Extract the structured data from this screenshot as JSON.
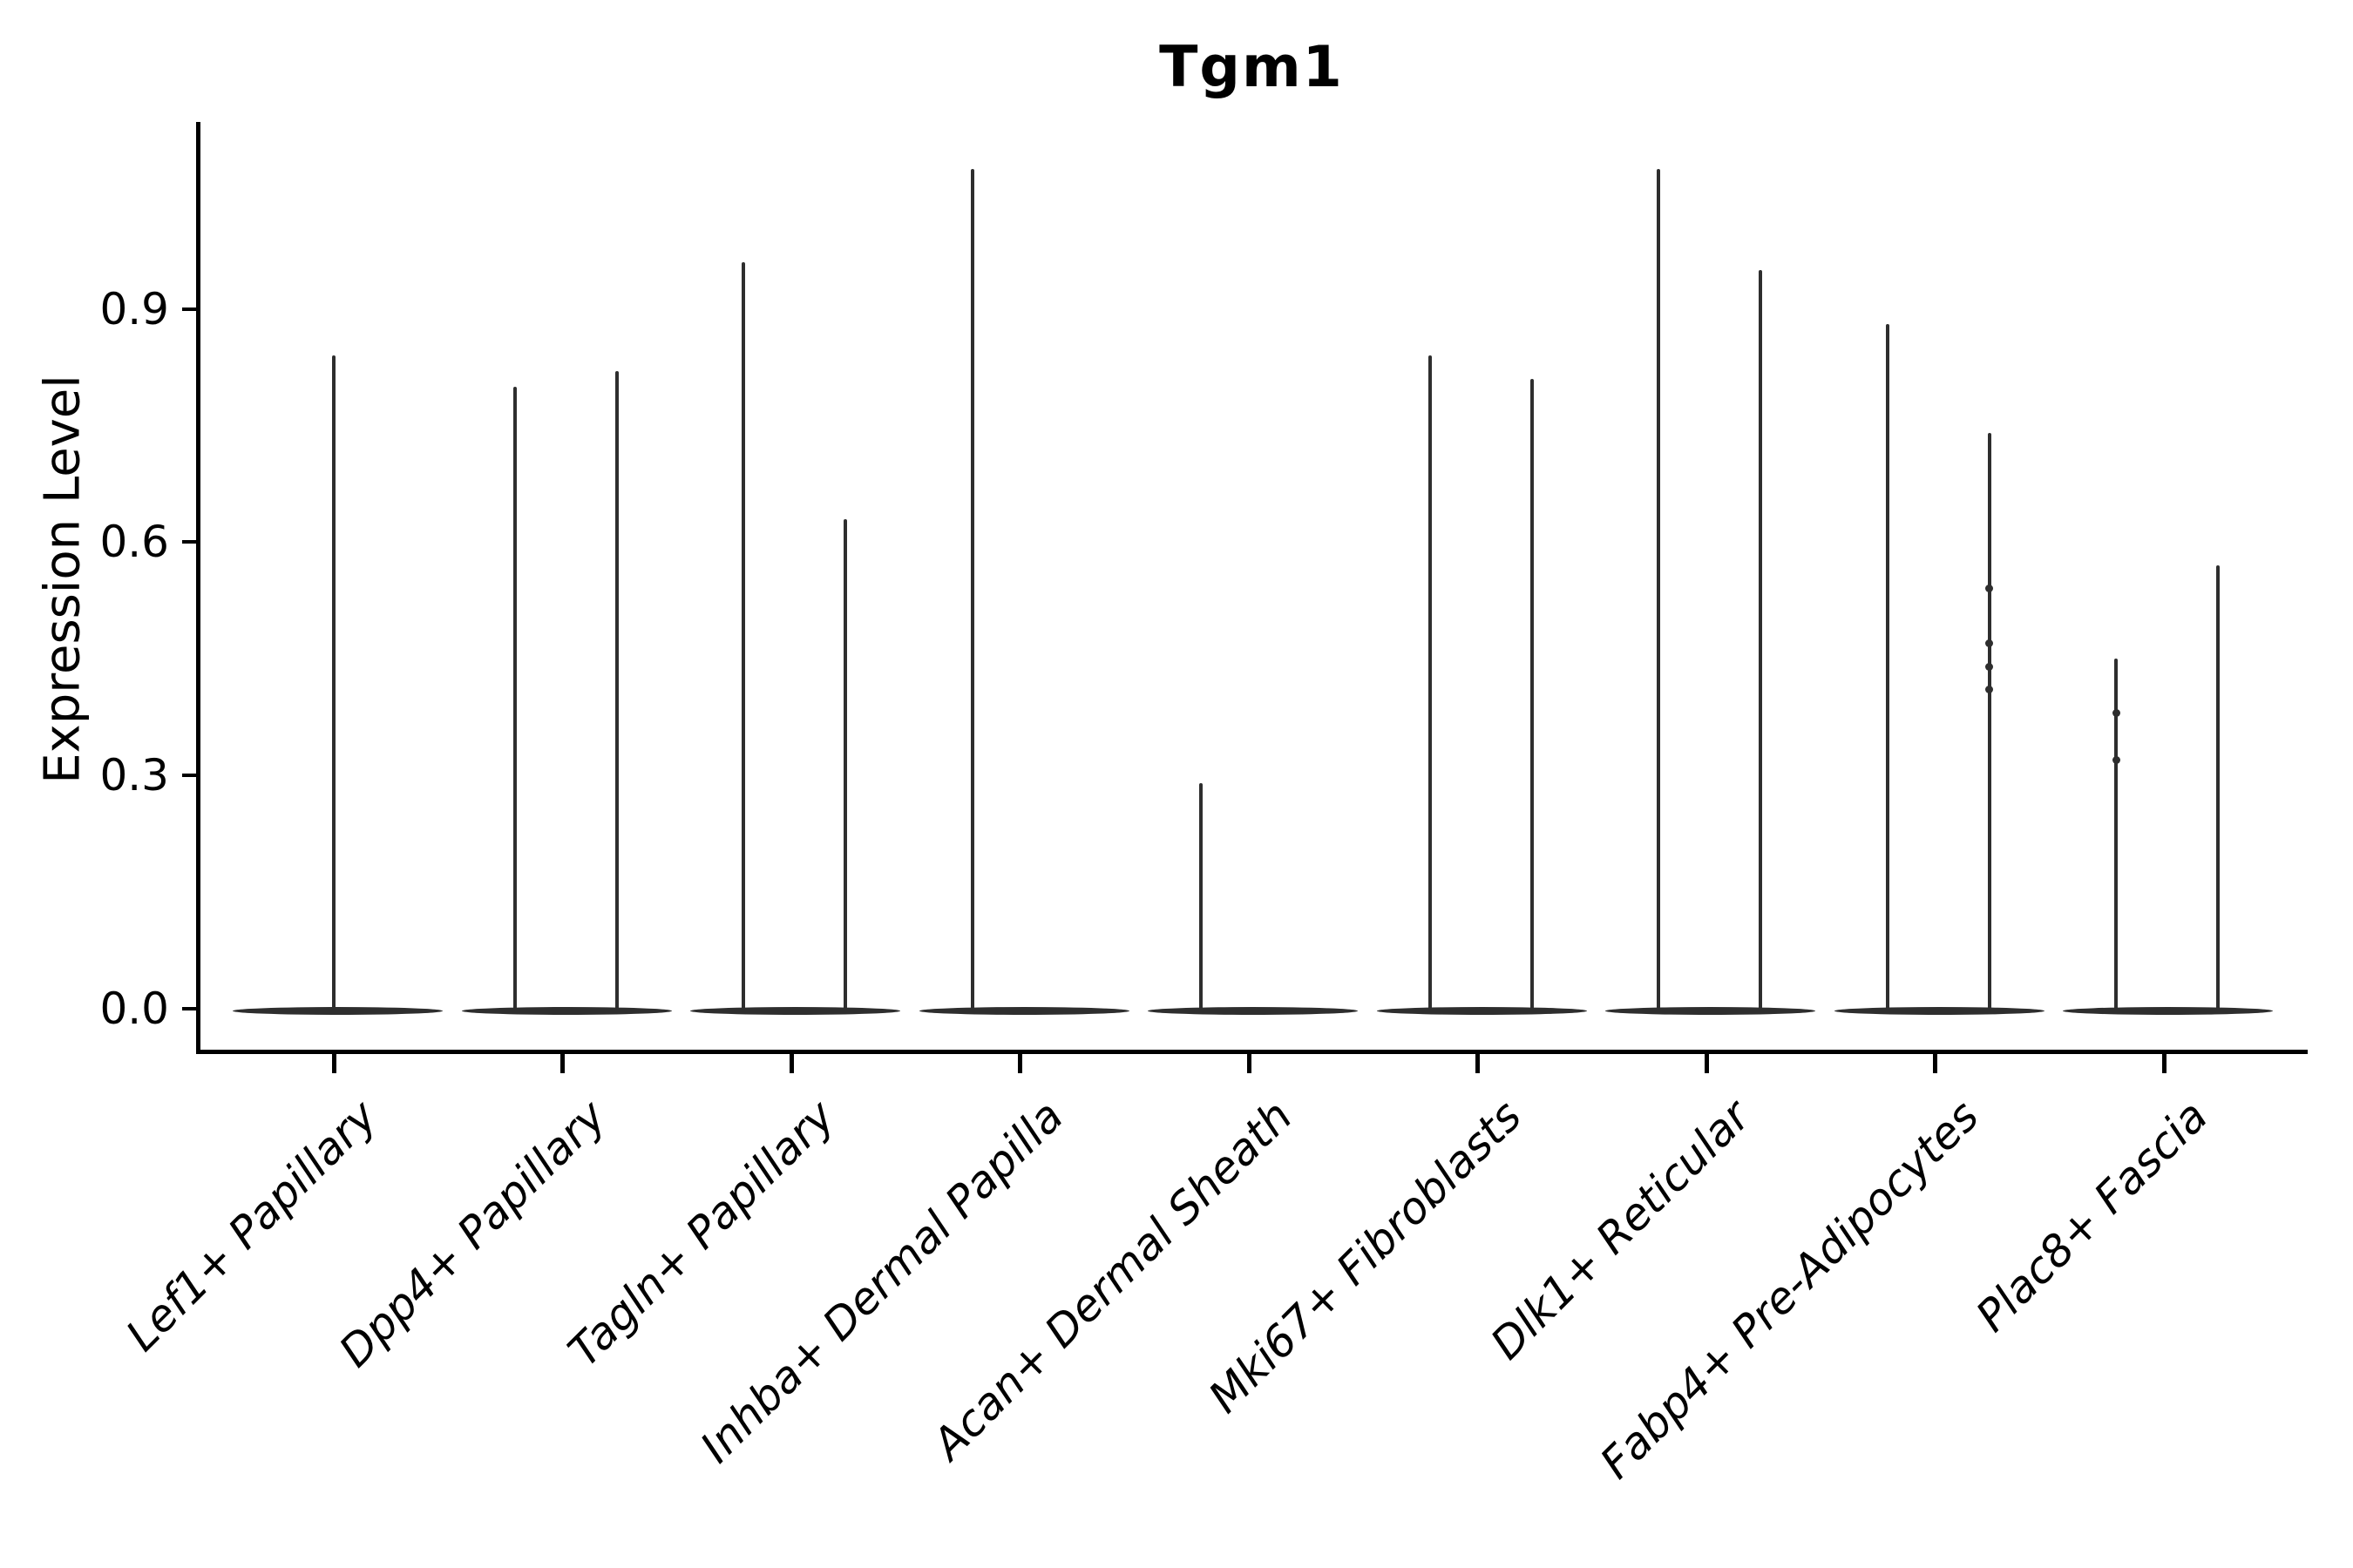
{
  "title": "Tgm1",
  "y_axis": {
    "label": "Expression Level",
    "tick_labels": [
      "0.0",
      "0.3",
      "0.6",
      "0.9"
    ]
  },
  "x_axis": {
    "tick_labels": [
      "Lef1+ Papillary",
      "Dpp4+ Papillary",
      "Tagln+ Papillary",
      "Inhba+ Dermal Papilla",
      "Acan+ Dermal Sheath",
      "Mki67+ Fibroblasts",
      "Dlk1+ Reticular",
      "Fabp4+ Pre-Adipocytes",
      "Plac8+ Fascia"
    ]
  },
  "chart_data": {
    "type": "violin",
    "title": "Tgm1",
    "xlabel": "",
    "ylabel": "Expression Level",
    "ylim": [
      -0.05,
      1.14
    ],
    "yticks": [
      0.0,
      0.3,
      0.6,
      0.9
    ],
    "grid": false,
    "legend": "none",
    "style": "Seurat-style VlnPlot: unfilled violins collapse to a flat dark bar at 0 with a thin spike up to the max expression; up to two dodged violins per cluster",
    "categories": [
      "Lef1+ Papillary",
      "Dpp4+ Papillary",
      "Tagln+ Papillary",
      "Inhba+ Dermal Papilla",
      "Acan+ Dermal Sheath",
      "Mki67+ Fibroblasts",
      "Dlk1+ Reticular",
      "Fabp4+ Pre-Adipocytes",
      "Plac8+ Fascia"
    ],
    "violins": [
      {
        "category": "Lef1+ Papillary",
        "spikes": [
          {
            "position": "center",
            "max": 0.84
          }
        ]
      },
      {
        "category": "Dpp4+ Papillary",
        "spikes": [
          {
            "position": "left",
            "max": 0.8
          },
          {
            "position": "right",
            "max": 0.82
          }
        ]
      },
      {
        "category": "Tagln+ Papillary",
        "spikes": [
          {
            "position": "left",
            "max": 0.96
          },
          {
            "position": "right",
            "max": 0.63
          }
        ]
      },
      {
        "category": "Inhba+ Dermal Papilla",
        "spikes": [
          {
            "position": "left",
            "max": 1.08
          }
        ]
      },
      {
        "category": "Acan+ Dermal Sheath",
        "spikes": [
          {
            "position": "left",
            "max": 0.29
          }
        ]
      },
      {
        "category": "Mki67+ Fibroblasts",
        "spikes": [
          {
            "position": "left",
            "max": 0.84
          },
          {
            "position": "right",
            "max": 0.81
          }
        ]
      },
      {
        "category": "Dlk1+ Reticular",
        "spikes": [
          {
            "position": "left",
            "max": 1.08
          },
          {
            "position": "right",
            "max": 0.95
          }
        ]
      },
      {
        "category": "Fabp4+ Pre-Adipocytes",
        "spikes": [
          {
            "position": "left",
            "max": 0.88
          },
          {
            "position": "right",
            "max": 0.74,
            "points": [
              0.54,
              0.47,
              0.44,
              0.41
            ]
          }
        ]
      },
      {
        "category": "Plac8+ Fascia",
        "spikes": [
          {
            "position": "left",
            "max": 0.45,
            "points": [
              0.38,
              0.32
            ]
          },
          {
            "position": "right",
            "max": 0.57
          }
        ]
      }
    ],
    "colors": {
      "violin_stroke": "#2e2e2e",
      "axis": "#000000",
      "background": "#ffffff"
    }
  }
}
